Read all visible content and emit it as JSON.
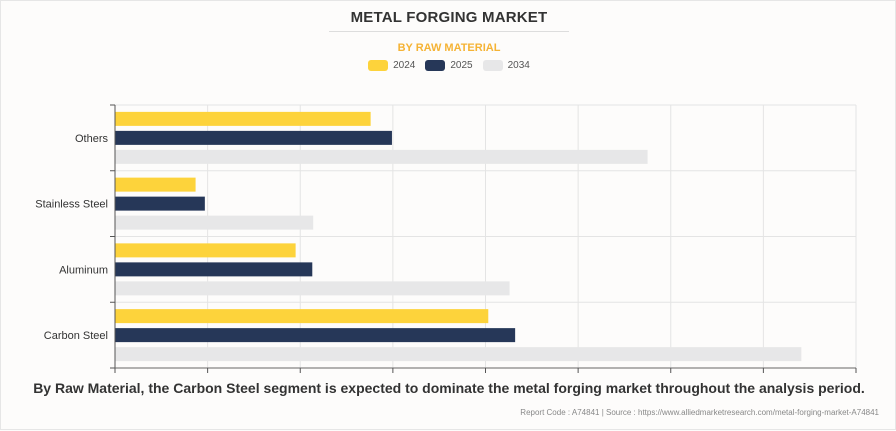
{
  "header": {
    "title": "METAL FORGING MARKET",
    "subtitle": "BY RAW MATERIAL"
  },
  "legend": [
    {
      "label": "2024",
      "color": "#fdd33b"
    },
    {
      "label": "2025",
      "color": "#263758"
    },
    {
      "label": "2034",
      "color": "#e7e7e8"
    }
  ],
  "caption": "By Raw Material, the Carbon Steel segment is expected to dominate the metal forging market throughout the analysis period.",
  "source": "Report Code : A74841  |  Source : https://www.alliedmarketresearch.com/metal-forging-market-A74841",
  "chart_data": {
    "type": "bar",
    "orientation": "horizontal",
    "title": "METAL FORGING MARKET",
    "subtitle": "BY RAW MATERIAL",
    "xlabel": "",
    "ylabel": "",
    "units": "relative grid units (no numeric axis labels shown)",
    "xlim": [
      0,
      8
    ],
    "x_ticks": [
      0,
      1,
      2,
      3,
      4,
      5,
      6,
      7,
      8
    ],
    "x_tick_labels_visible": false,
    "grid": true,
    "legend_position": "top-center",
    "categories": [
      "Others",
      "Stainless Steel",
      "Aluminum",
      "Carbon Steel"
    ],
    "series": [
      {
        "name": "2024",
        "color": "#fdd33b",
        "values": [
          2.76,
          0.87,
          1.95,
          4.03
        ]
      },
      {
        "name": "2025",
        "color": "#263758",
        "values": [
          2.99,
          0.97,
          2.13,
          4.32
        ]
      },
      {
        "name": "2034",
        "color": "#e7e7e8",
        "values": [
          5.75,
          2.14,
          4.26,
          7.41
        ]
      }
    ]
  }
}
